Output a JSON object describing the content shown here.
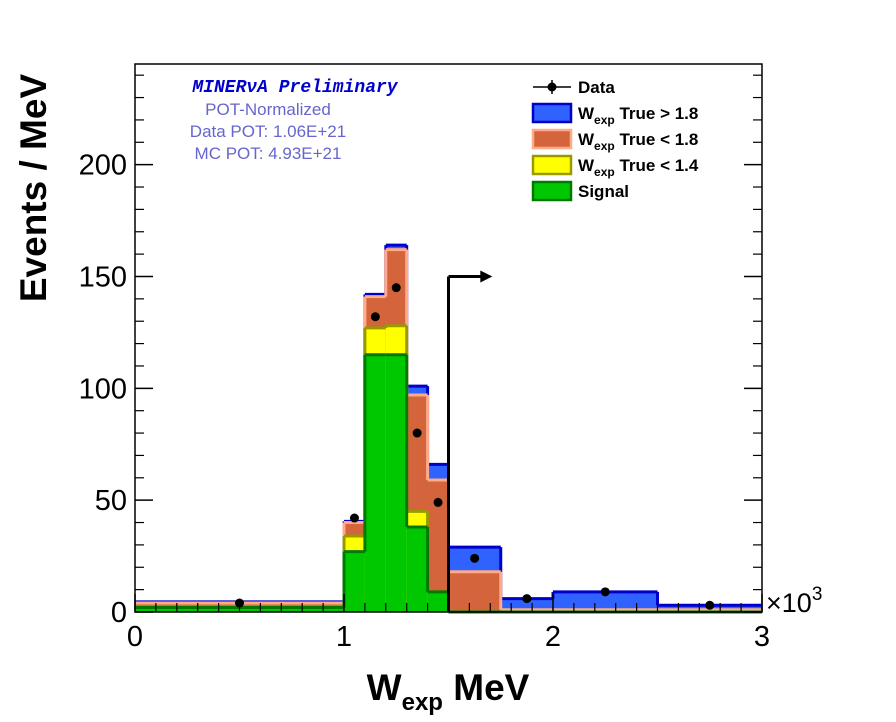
{
  "chart_data": {
    "type": "bar",
    "stacked": true,
    "xlabel_main": "W",
    "xlabel_sub": "exp",
    "xlabel_tail": " MeV",
    "ylabel": "Events / MeV",
    "x_multiplier": "×10",
    "x_multiplier_exp": "3",
    "xlim": [
      0,
      3000
    ],
    "ylim": [
      0,
      245
    ],
    "x_ticks": [
      0,
      1000,
      2000,
      3000
    ],
    "x_tick_labels": [
      "0",
      "1",
      "2",
      "3"
    ],
    "y_ticks": [
      0,
      50,
      100,
      150,
      200
    ],
    "y_tick_labels": [
      "0",
      "50",
      "100",
      "150",
      "200"
    ],
    "bin_edges": [
      0,
      1000,
      1100,
      1200,
      1300,
      1400,
      1500,
      1750,
      2000,
      2500,
      3000
    ],
    "series": [
      {
        "name": "Signal",
        "label_main": "Signal",
        "label_sub": "",
        "label_tail": "",
        "fill": "#00c800",
        "stroke": "#007a00",
        "values": [
          2,
          27,
          115,
          115,
          38,
          9,
          0,
          0,
          0,
          0
        ]
      },
      {
        "name": "Wexp True < 1.4",
        "label_main": "W",
        "label_sub": "exp",
        "label_tail": " True < 1.4",
        "fill": "#ffff00",
        "stroke": "#999900",
        "values": [
          0.5,
          7,
          12,
          13,
          7,
          0,
          0,
          0,
          0,
          0
        ]
      },
      {
        "name": "Wexp True < 1.8",
        "label_main": "W",
        "label_sub": "exp",
        "label_tail": " True < 1.8",
        "fill": "#d3643b",
        "stroke": "#ffaa88",
        "values": [
          1.5,
          6,
          14,
          34,
          52,
          50,
          18,
          1,
          1,
          1
        ]
      },
      {
        "name": "Wexp True > 1.8",
        "label_main": "W",
        "label_sub": "exp",
        "label_tail": " True > 1.8",
        "fill": "#2f62ff",
        "stroke": "#0000cc",
        "values": [
          0.5,
          0.5,
          1,
          2,
          4,
          7,
          11,
          5,
          8,
          2
        ]
      }
    ],
    "data": {
      "name": "Data",
      "x": [
        500,
        1050,
        1150,
        1250,
        1350,
        1450,
        1625,
        1875,
        2250,
        2750
      ],
      "y": [
        4,
        42,
        132,
        145,
        80,
        49,
        24,
        6,
        9,
        3
      ]
    },
    "cut_line": {
      "x": 1500,
      "top": 150,
      "arrow_to": 1700
    },
    "legend_placement": "top-right",
    "annotations": {
      "preliminary": "MINERνA Preliminary",
      "line1": "POT-Normalized",
      "line2": "Data POT: 1.06E+21",
      "line3": "MC POT: 4.93E+21"
    },
    "grid": false
  }
}
